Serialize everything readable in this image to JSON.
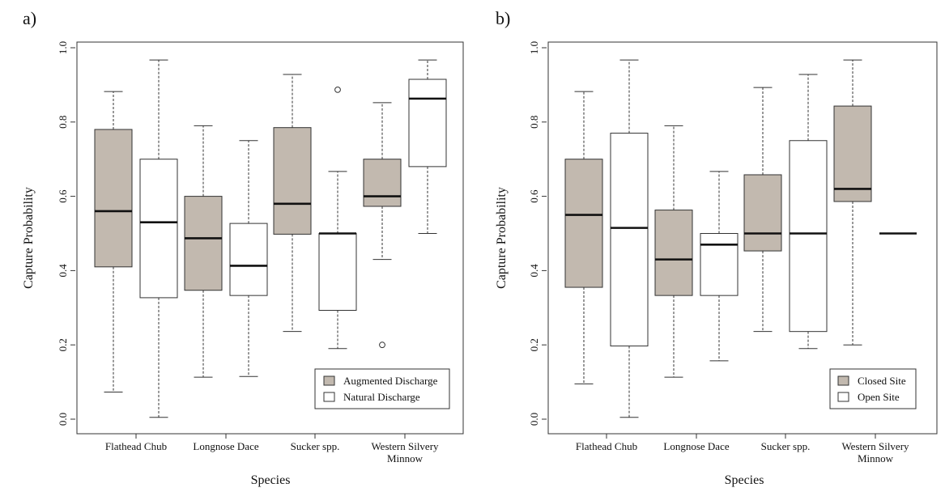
{
  "chart_data": [
    {
      "panel_label": "a)",
      "type": "boxplot",
      "xlabel": "Species",
      "ylabel": "Capture Probability",
      "ylim": [
        0,
        1
      ],
      "yticks": [
        "0.0",
        "0.2",
        "0.4",
        "0.6",
        "0.8",
        "1.0"
      ],
      "categories": [
        "Flathead Chub",
        "Longnose Dace",
        "Sucker spp.",
        "Western Silvery|Minnow"
      ],
      "legend_position": "bottom-right",
      "series": [
        {
          "name": "Augmented Discharge",
          "color": "#c2b9af",
          "boxes": [
            {
              "min": 0.073,
              "q1": 0.41,
              "median": 0.56,
              "q3": 0.78,
              "max": 0.882,
              "outliers": []
            },
            {
              "min": 0.113,
              "q1": 0.347,
              "median": 0.487,
              "q3": 0.6,
              "max": 0.79,
              "outliers": []
            },
            {
              "min": 0.236,
              "q1": 0.498,
              "median": 0.58,
              "q3": 0.785,
              "max": 0.928,
              "outliers": []
            },
            {
              "min": 0.43,
              "q1": 0.573,
              "median": 0.6,
              "q3": 0.7,
              "max": 0.852,
              "outliers": [
                0.2
              ]
            }
          ]
        },
        {
          "name": "Natural Discharge",
          "color": "#ffffff",
          "boxes": [
            {
              "min": 0.005,
              "q1": 0.327,
              "median": 0.53,
              "q3": 0.7,
              "max": 0.967,
              "outliers": []
            },
            {
              "min": 0.115,
              "q1": 0.333,
              "median": 0.413,
              "q3": 0.527,
              "max": 0.75,
              "outliers": []
            },
            {
              "min": 0.19,
              "q1": 0.293,
              "median": 0.5,
              "q3": 0.5,
              "max": 0.667,
              "outliers": [
                0.887
              ]
            },
            {
              "min": 0.5,
              "q1": 0.68,
              "median": 0.863,
              "q3": 0.915,
              "max": 0.967,
              "outliers": []
            }
          ]
        }
      ]
    },
    {
      "panel_label": "b)",
      "type": "boxplot",
      "xlabel": "Species",
      "ylabel": "Capture Probability",
      "ylim": [
        0,
        1
      ],
      "yticks": [
        "0.0",
        "0.2",
        "0.4",
        "0.6",
        "0.8",
        "1.0"
      ],
      "categories": [
        "Flathead Chub",
        "Longnose Dace",
        "Sucker spp.",
        "Western Silvery|Minnow"
      ],
      "legend_position": "bottom-right",
      "series": [
        {
          "name": "Closed Site",
          "color": "#c2b9af",
          "boxes": [
            {
              "min": 0.095,
              "q1": 0.355,
              "median": 0.55,
              "q3": 0.7,
              "max": 0.882,
              "outliers": []
            },
            {
              "min": 0.113,
              "q1": 0.333,
              "median": 0.43,
              "q3": 0.563,
              "max": 0.79,
              "outliers": []
            },
            {
              "min": 0.236,
              "q1": 0.453,
              "median": 0.5,
              "q3": 0.658,
              "max": 0.893,
              "outliers": []
            },
            {
              "min": 0.2,
              "q1": 0.586,
              "median": 0.62,
              "q3": 0.843,
              "max": 0.967,
              "outliers": []
            }
          ]
        },
        {
          "name": "Open Site",
          "color": "#ffffff",
          "boxes": [
            {
              "min": 0.005,
              "q1": 0.197,
              "median": 0.515,
              "q3": 0.77,
              "max": 0.967,
              "outliers": []
            },
            {
              "min": 0.157,
              "q1": 0.333,
              "median": 0.47,
              "q3": 0.5,
              "max": 0.667,
              "outliers": []
            },
            {
              "min": 0.19,
              "q1": 0.236,
              "median": 0.5,
              "q3": 0.75,
              "max": 0.928,
              "outliers": []
            },
            {
              "min": 0.5,
              "q1": 0.5,
              "median": 0.5,
              "q3": 0.5,
              "max": 0.5,
              "outliers": []
            }
          ]
        }
      ]
    }
  ]
}
